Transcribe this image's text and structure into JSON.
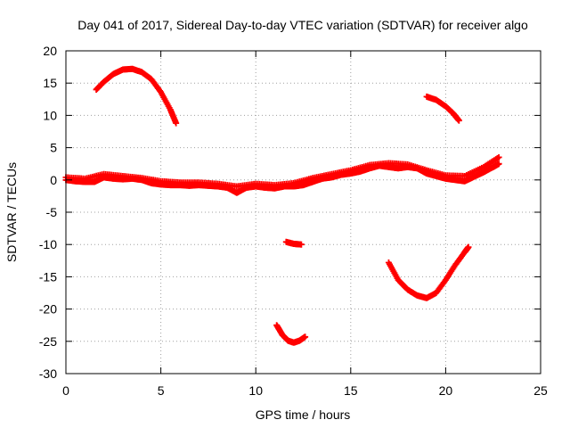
{
  "chart_data": {
    "type": "scatter",
    "title": "Day 041 of 2017, Sidereal Day-to-day VTEC variation (SDTVAR) for receiver algo",
    "xlabel": "GPS time / hours",
    "ylabel": "SDTVAR / TECUs",
    "xlim": [
      0,
      25
    ],
    "ylim": [
      -30,
      20
    ],
    "xticks": [
      0,
      5,
      10,
      15,
      20,
      25
    ],
    "yticks": [
      -30,
      -25,
      -20,
      -15,
      -10,
      -5,
      0,
      5,
      10,
      15,
      20
    ],
    "grid": true,
    "marker": "plus",
    "color": "#ff0000",
    "series": [
      {
        "name": "main-band",
        "x": [
          0.0,
          0.5,
          1.0,
          1.5,
          2.0,
          2.5,
          3.0,
          3.5,
          4.0,
          4.5,
          5.0,
          5.5,
          6.0,
          6.5,
          7.0,
          7.5,
          8.0,
          8.5,
          9.0,
          9.5,
          10.0,
          10.5,
          11.0,
          11.5,
          12.0,
          12.5,
          13.0,
          13.5,
          14.0,
          14.5,
          15.0,
          15.5,
          16.0,
          16.5,
          17.0,
          17.5,
          18.0,
          18.5,
          19.0,
          19.5,
          20.0,
          20.5,
          21.0,
          21.5,
          22.0,
          22.5,
          22.8
        ],
        "y": [
          0.0,
          -0.2,
          -0.3,
          -0.3,
          0.4,
          0.2,
          0.1,
          0.2,
          0.0,
          -0.5,
          -0.7,
          -0.8,
          -0.8,
          -0.9,
          -0.8,
          -0.9,
          -1.0,
          -1.2,
          -2.0,
          -1.2,
          -1.0,
          -1.2,
          -1.3,
          -1.0,
          -1.0,
          -0.8,
          -0.3,
          0.2,
          0.4,
          0.8,
          1.0,
          1.3,
          1.8,
          2.2,
          2.0,
          1.8,
          2.0,
          1.8,
          1.0,
          0.6,
          0.2,
          0.0,
          -0.2,
          0.5,
          1.2,
          2.0,
          2.5
        ]
      },
      {
        "name": "main-band-upper",
        "x": [
          0.0,
          1.0,
          2.0,
          3.0,
          4.0,
          5.0,
          6.0,
          7.0,
          8.0,
          9.0,
          10.0,
          11.0,
          12.0,
          13.0,
          14.0,
          15.0,
          16.0,
          17.0,
          18.0,
          19.0,
          20.0,
          21.0,
          22.0,
          22.8
        ],
        "y": [
          0.4,
          0.2,
          0.9,
          0.6,
          0.3,
          -0.2,
          -0.4,
          -0.4,
          -0.6,
          -1.0,
          -0.6,
          -0.8,
          -0.5,
          0.3,
          0.9,
          1.5,
          2.3,
          2.6,
          2.4,
          1.5,
          0.7,
          0.6,
          2.0,
          3.5
        ]
      },
      {
        "name": "arc-early",
        "x": [
          1.6,
          2.0,
          2.5,
          3.0,
          3.5,
          4.0,
          4.5,
          5.0,
          5.5,
          5.8
        ],
        "y": [
          14.0,
          15.2,
          16.4,
          17.1,
          17.2,
          16.7,
          15.6,
          13.6,
          10.9,
          8.8
        ]
      },
      {
        "name": "arc-late-positive",
        "x": [
          19.0,
          19.5,
          20.0,
          20.4,
          20.7
        ],
        "y": [
          12.9,
          12.4,
          11.4,
          10.3,
          9.2
        ]
      },
      {
        "name": "segment-mid-negative",
        "x": [
          11.6,
          12.0,
          12.4
        ],
        "y": [
          -9.6,
          -9.9,
          -10.0
        ]
      },
      {
        "name": "arc-midday-dip",
        "x": [
          11.1,
          11.4,
          11.7,
          12.0,
          12.3,
          12.6
        ],
        "y": [
          -22.5,
          -24.0,
          -24.9,
          -25.2,
          -24.9,
          -24.3
        ]
      },
      {
        "name": "arc-late-negative",
        "x": [
          17.0,
          17.5,
          18.0,
          18.5,
          19.0,
          19.5,
          20.0,
          20.5,
          21.0,
          21.2
        ],
        "y": [
          -12.8,
          -15.5,
          -17.0,
          -17.9,
          -18.3,
          -17.5,
          -15.5,
          -13.2,
          -11.2,
          -10.4
        ]
      }
    ]
  }
}
